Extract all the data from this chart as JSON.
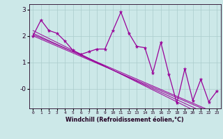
{
  "xlabel": "Windchill (Refroidissement éolien,°C)",
  "hours": [
    0,
    1,
    2,
    3,
    4,
    5,
    6,
    7,
    8,
    9,
    10,
    11,
    12,
    13,
    14,
    15,
    16,
    17,
    18,
    19,
    20,
    21,
    22,
    23
  ],
  "main_line": [
    2.0,
    2.6,
    2.2,
    2.1,
    1.8,
    1.45,
    1.3,
    1.4,
    1.5,
    1.5,
    2.2,
    2.9,
    2.1,
    1.6,
    1.55,
    0.6,
    1.75,
    0.55,
    -0.55,
    0.75,
    -0.45,
    0.35,
    -0.5,
    -0.1
  ],
  "trend_lines": [
    [
      2.0,
      1.87,
      1.74,
      1.61,
      1.48,
      1.35,
      1.22,
      1.09,
      0.96,
      0.83,
      0.7,
      0.57,
      0.44,
      0.31,
      0.18,
      0.05,
      -0.08,
      -0.21,
      -0.34,
      -0.47,
      -0.6,
      -0.73,
      -0.86,
      -0.99
    ],
    [
      2.1,
      1.96,
      1.82,
      1.68,
      1.54,
      1.4,
      1.26,
      1.12,
      0.98,
      0.84,
      0.7,
      0.56,
      0.42,
      0.28,
      0.14,
      0.0,
      -0.14,
      -0.28,
      -0.42,
      -0.56,
      -0.7,
      -0.84,
      -0.98,
      -1.12
    ],
    [
      2.2,
      2.05,
      1.9,
      1.75,
      1.6,
      1.45,
      1.3,
      1.15,
      1.0,
      0.85,
      0.7,
      0.55,
      0.4,
      0.25,
      0.1,
      -0.05,
      -0.2,
      -0.35,
      -0.5,
      -0.65,
      -0.8,
      -0.95,
      -1.1,
      -1.25
    ],
    [
      2.05,
      1.92,
      1.79,
      1.66,
      1.53,
      1.4,
      1.27,
      1.14,
      1.01,
      0.88,
      0.75,
      0.62,
      0.49,
      0.36,
      0.23,
      0.1,
      -0.03,
      -0.16,
      -0.29,
      -0.42,
      -0.55,
      -0.68,
      -0.81,
      -0.94
    ]
  ],
  "color": "#990099",
  "bg_color": "#cce8e8",
  "grid_color": "#aacccc",
  "ylim": [
    -0.75,
    3.2
  ],
  "ytick_positions": [
    3,
    2,
    1,
    0
  ],
  "ytick_labels": [
    "3",
    "2",
    "1",
    "-0"
  ]
}
